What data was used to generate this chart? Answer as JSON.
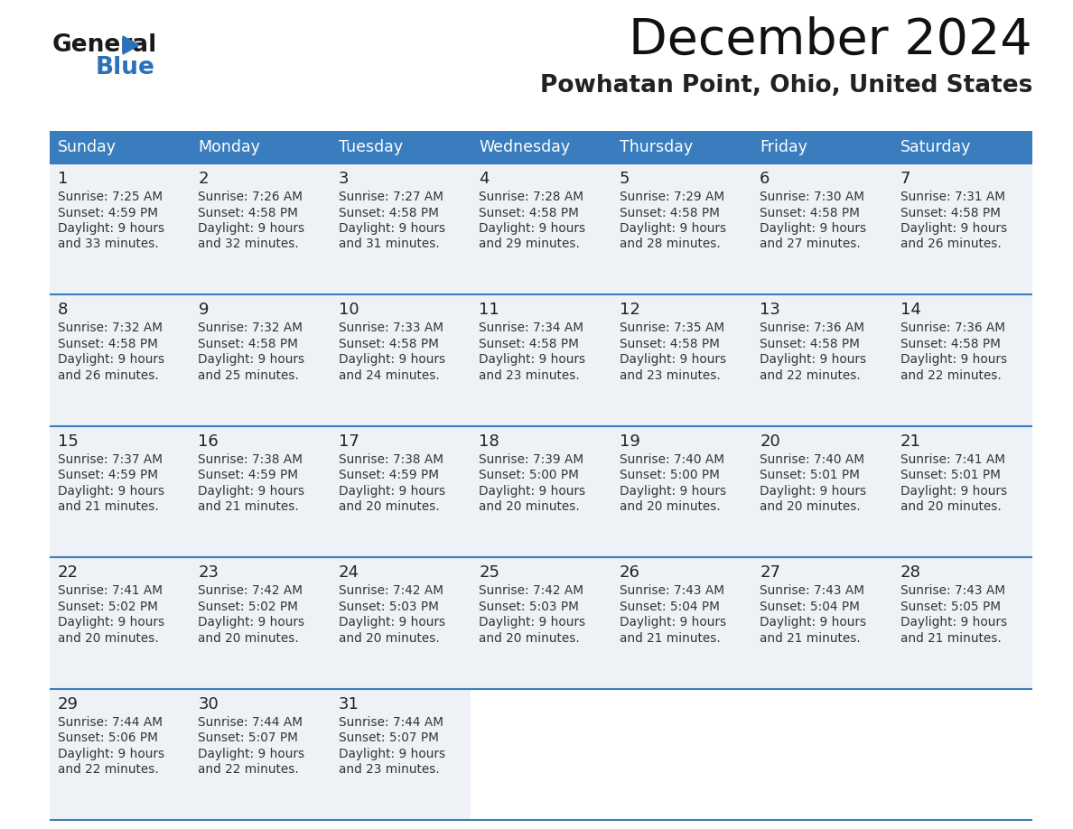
{
  "title": "December 2024",
  "subtitle": "Powhatan Point, Ohio, United States",
  "header_color": "#3a7dbf",
  "header_text_color": "#ffffff",
  "cell_bg_color": "#eef2f7",
  "border_color": "#3a7dbf",
  "text_color": "#333333",
  "days_of_week": [
    "Sunday",
    "Monday",
    "Tuesday",
    "Wednesday",
    "Thursday",
    "Friday",
    "Saturday"
  ],
  "weeks": [
    [
      {
        "day": 1,
        "sunrise": "7:25 AM",
        "sunset": "4:59 PM",
        "daylight_hours": 9,
        "daylight_minutes": 33
      },
      {
        "day": 2,
        "sunrise": "7:26 AM",
        "sunset": "4:58 PM",
        "daylight_hours": 9,
        "daylight_minutes": 32
      },
      {
        "day": 3,
        "sunrise": "7:27 AM",
        "sunset": "4:58 PM",
        "daylight_hours": 9,
        "daylight_minutes": 31
      },
      {
        "day": 4,
        "sunrise": "7:28 AM",
        "sunset": "4:58 PM",
        "daylight_hours": 9,
        "daylight_minutes": 29
      },
      {
        "day": 5,
        "sunrise": "7:29 AM",
        "sunset": "4:58 PM",
        "daylight_hours": 9,
        "daylight_minutes": 28
      },
      {
        "day": 6,
        "sunrise": "7:30 AM",
        "sunset": "4:58 PM",
        "daylight_hours": 9,
        "daylight_minutes": 27
      },
      {
        "day": 7,
        "sunrise": "7:31 AM",
        "sunset": "4:58 PM",
        "daylight_hours": 9,
        "daylight_minutes": 26
      }
    ],
    [
      {
        "day": 8,
        "sunrise": "7:32 AM",
        "sunset": "4:58 PM",
        "daylight_hours": 9,
        "daylight_minutes": 26
      },
      {
        "day": 9,
        "sunrise": "7:32 AM",
        "sunset": "4:58 PM",
        "daylight_hours": 9,
        "daylight_minutes": 25
      },
      {
        "day": 10,
        "sunrise": "7:33 AM",
        "sunset": "4:58 PM",
        "daylight_hours": 9,
        "daylight_minutes": 24
      },
      {
        "day": 11,
        "sunrise": "7:34 AM",
        "sunset": "4:58 PM",
        "daylight_hours": 9,
        "daylight_minutes": 23
      },
      {
        "day": 12,
        "sunrise": "7:35 AM",
        "sunset": "4:58 PM",
        "daylight_hours": 9,
        "daylight_minutes": 23
      },
      {
        "day": 13,
        "sunrise": "7:36 AM",
        "sunset": "4:58 PM",
        "daylight_hours": 9,
        "daylight_minutes": 22
      },
      {
        "day": 14,
        "sunrise": "7:36 AM",
        "sunset": "4:58 PM",
        "daylight_hours": 9,
        "daylight_minutes": 22
      }
    ],
    [
      {
        "day": 15,
        "sunrise": "7:37 AM",
        "sunset": "4:59 PM",
        "daylight_hours": 9,
        "daylight_minutes": 21
      },
      {
        "day": 16,
        "sunrise": "7:38 AM",
        "sunset": "4:59 PM",
        "daylight_hours": 9,
        "daylight_minutes": 21
      },
      {
        "day": 17,
        "sunrise": "7:38 AM",
        "sunset": "4:59 PM",
        "daylight_hours": 9,
        "daylight_minutes": 20
      },
      {
        "day": 18,
        "sunrise": "7:39 AM",
        "sunset": "5:00 PM",
        "daylight_hours": 9,
        "daylight_minutes": 20
      },
      {
        "day": 19,
        "sunrise": "7:40 AM",
        "sunset": "5:00 PM",
        "daylight_hours": 9,
        "daylight_minutes": 20
      },
      {
        "day": 20,
        "sunrise": "7:40 AM",
        "sunset": "5:01 PM",
        "daylight_hours": 9,
        "daylight_minutes": 20
      },
      {
        "day": 21,
        "sunrise": "7:41 AM",
        "sunset": "5:01 PM",
        "daylight_hours": 9,
        "daylight_minutes": 20
      }
    ],
    [
      {
        "day": 22,
        "sunrise": "7:41 AM",
        "sunset": "5:02 PM",
        "daylight_hours": 9,
        "daylight_minutes": 20
      },
      {
        "day": 23,
        "sunrise": "7:42 AM",
        "sunset": "5:02 PM",
        "daylight_hours": 9,
        "daylight_minutes": 20
      },
      {
        "day": 24,
        "sunrise": "7:42 AM",
        "sunset": "5:03 PM",
        "daylight_hours": 9,
        "daylight_minutes": 20
      },
      {
        "day": 25,
        "sunrise": "7:42 AM",
        "sunset": "5:03 PM",
        "daylight_hours": 9,
        "daylight_minutes": 20
      },
      {
        "day": 26,
        "sunrise": "7:43 AM",
        "sunset": "5:04 PM",
        "daylight_hours": 9,
        "daylight_minutes": 21
      },
      {
        "day": 27,
        "sunrise": "7:43 AM",
        "sunset": "5:04 PM",
        "daylight_hours": 9,
        "daylight_minutes": 21
      },
      {
        "day": 28,
        "sunrise": "7:43 AM",
        "sunset": "5:05 PM",
        "daylight_hours": 9,
        "daylight_minutes": 21
      }
    ],
    [
      {
        "day": 29,
        "sunrise": "7:44 AM",
        "sunset": "5:06 PM",
        "daylight_hours": 9,
        "daylight_minutes": 22
      },
      {
        "day": 30,
        "sunrise": "7:44 AM",
        "sunset": "5:07 PM",
        "daylight_hours": 9,
        "daylight_minutes": 22
      },
      {
        "day": 31,
        "sunrise": "7:44 AM",
        "sunset": "5:07 PM",
        "daylight_hours": 9,
        "daylight_minutes": 23
      },
      null,
      null,
      null,
      null
    ]
  ]
}
